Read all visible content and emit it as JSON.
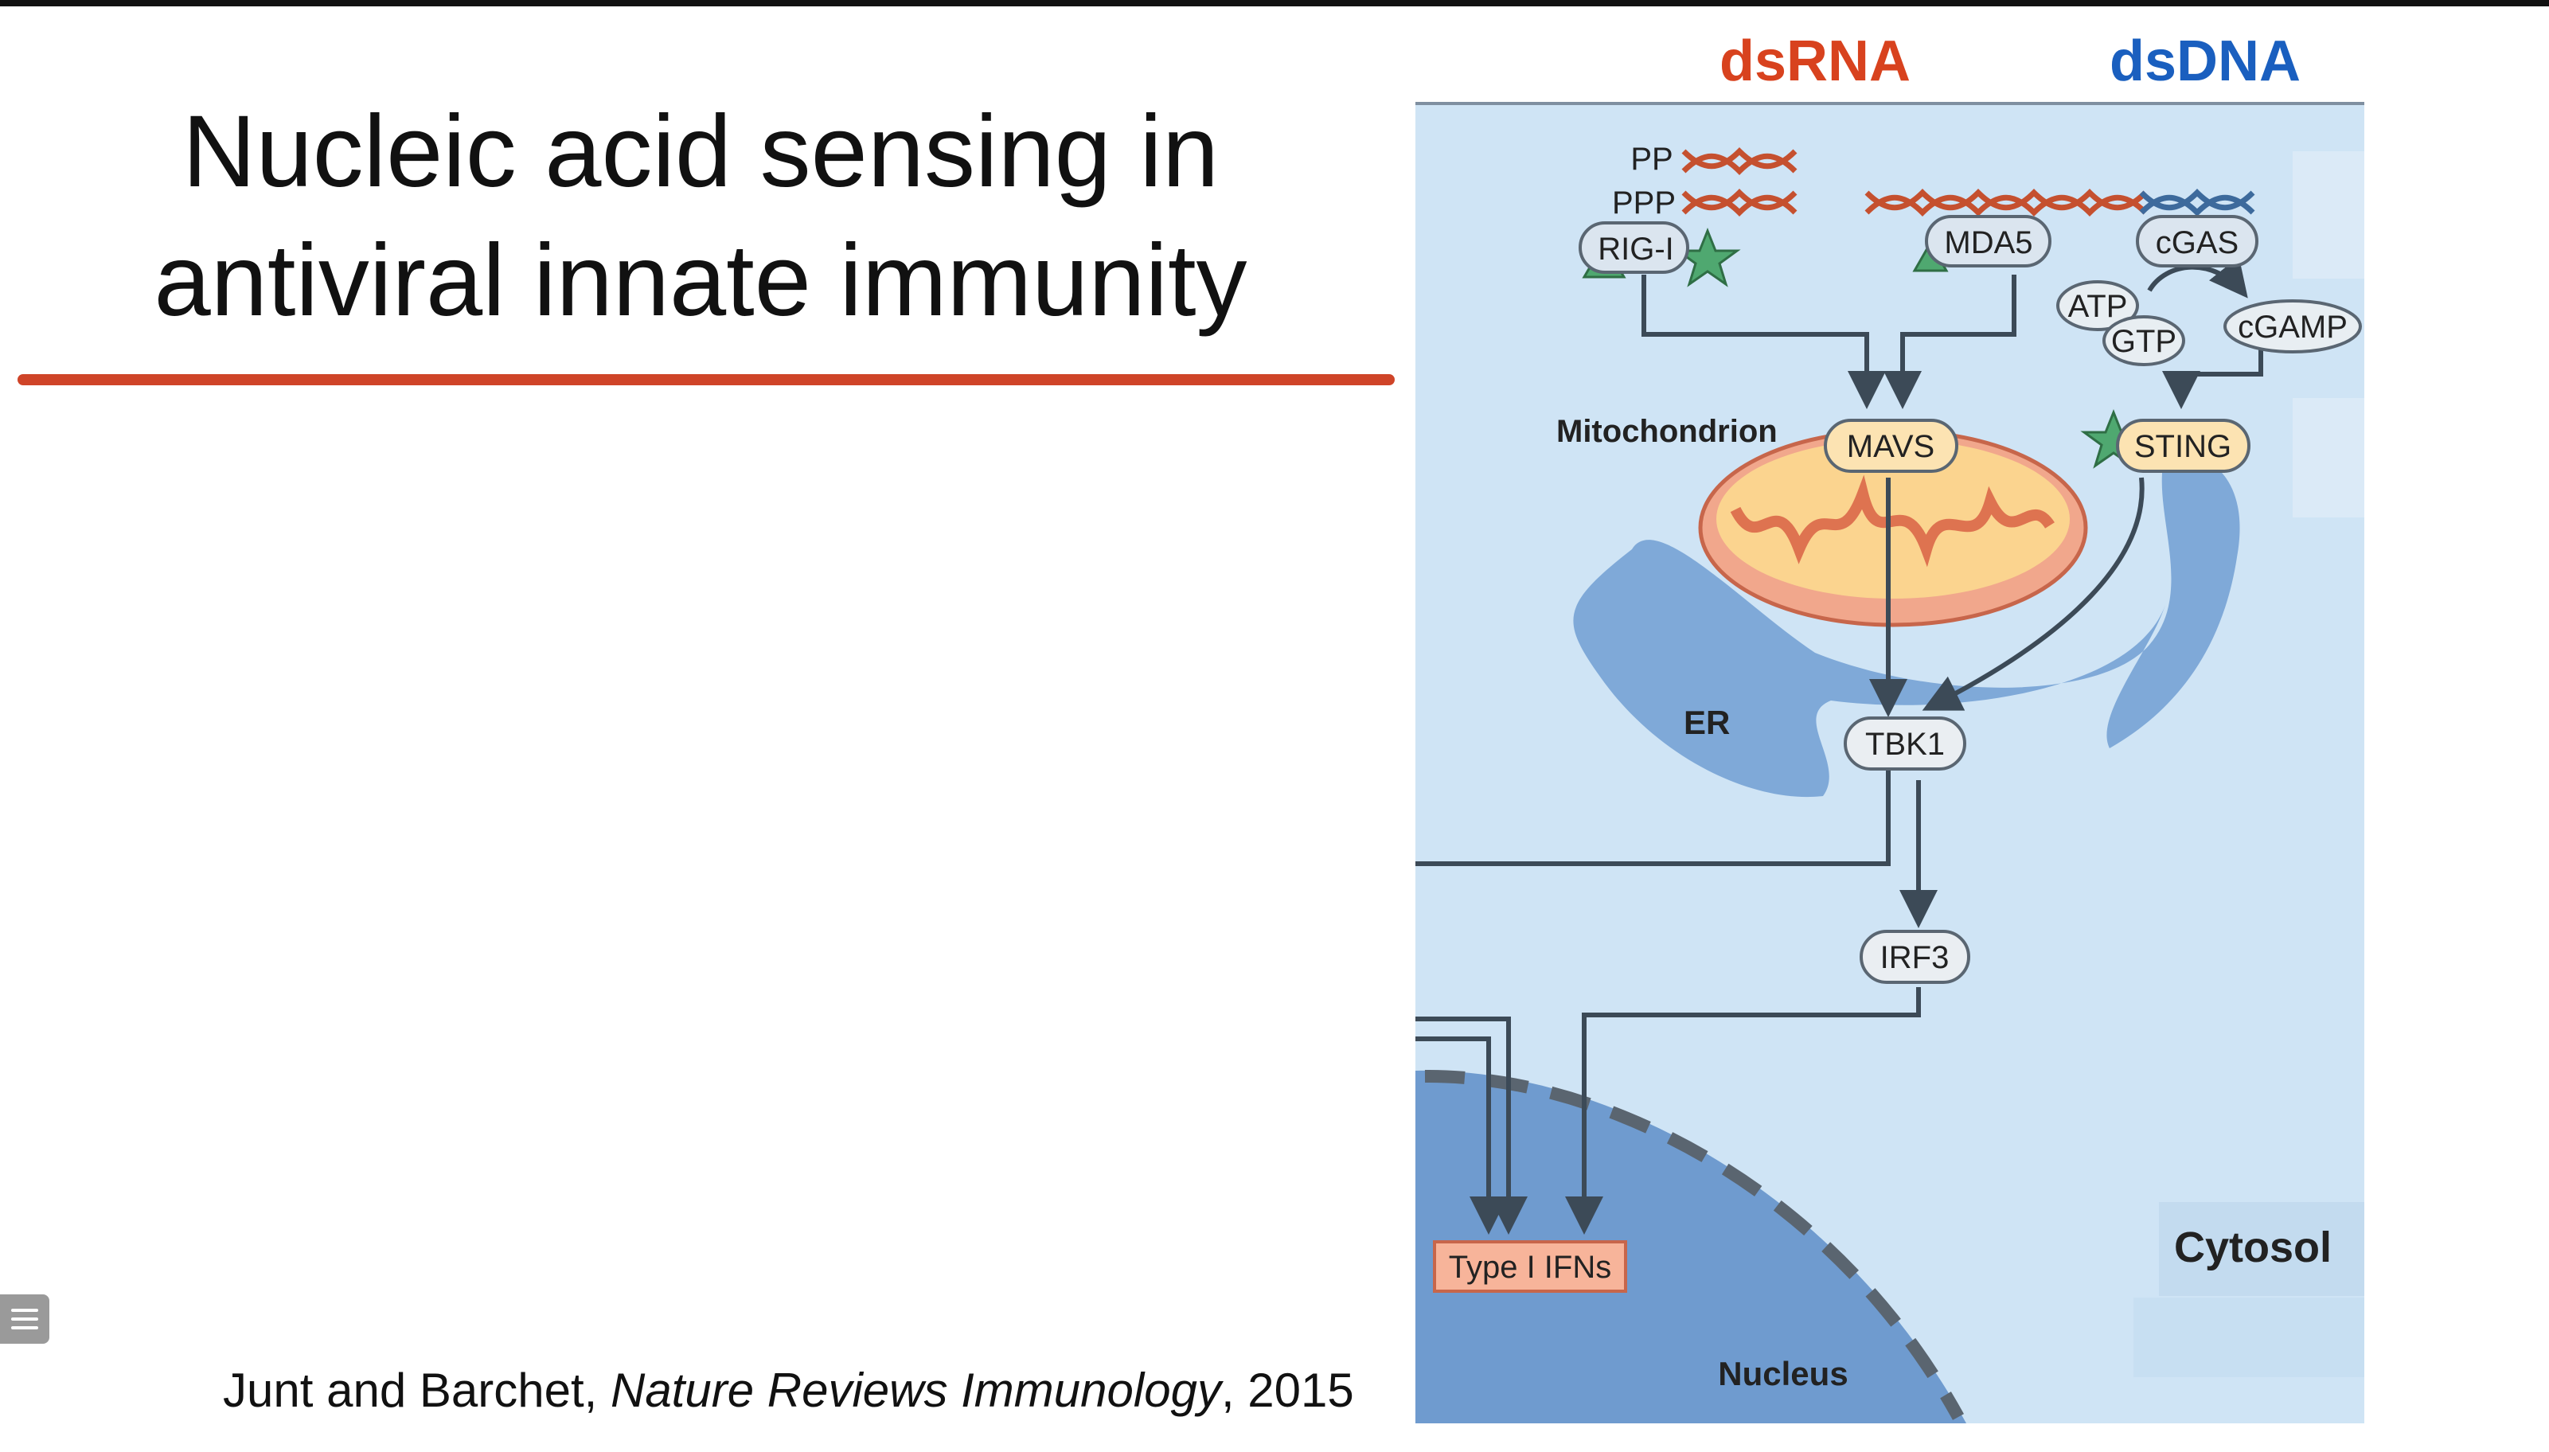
{
  "slide": {
    "title_line1": "Nucleic acid sensing in",
    "title_line2": "antiviral innate immunity",
    "citation_authors": "Junt and Barchet, ",
    "citation_journal": "Nature Reviews Immunology",
    "citation_year": ", 2015"
  },
  "headers": {
    "rna": "dsRNA",
    "dna": "dsDNA"
  },
  "diagram": {
    "pp": "PP",
    "ppp": "PPP",
    "rig_i": "RIG-I",
    "mda5": "MDA5",
    "cgas": "cGAS",
    "atp": "ATP",
    "gtp": "GTP",
    "cgamp": "cGAMP",
    "mitochondrion": "Mitochondrion",
    "mavs": "MAVS",
    "sting": "STING",
    "er": "ER",
    "tbk1": "TBK1",
    "irf3": "IRF3",
    "type_i_ifns": "Type I IFNs",
    "cytosol": "Cytosol",
    "nucleus": "Nucleus"
  },
  "colors": {
    "rna_header": "#d8421e",
    "dna_header": "#1a5fbf",
    "cytoplasm": "#cfe4f5",
    "er": "#7fa9d8",
    "mito_outer": "#f1a78c",
    "mito_inner": "#fbd48f"
  }
}
